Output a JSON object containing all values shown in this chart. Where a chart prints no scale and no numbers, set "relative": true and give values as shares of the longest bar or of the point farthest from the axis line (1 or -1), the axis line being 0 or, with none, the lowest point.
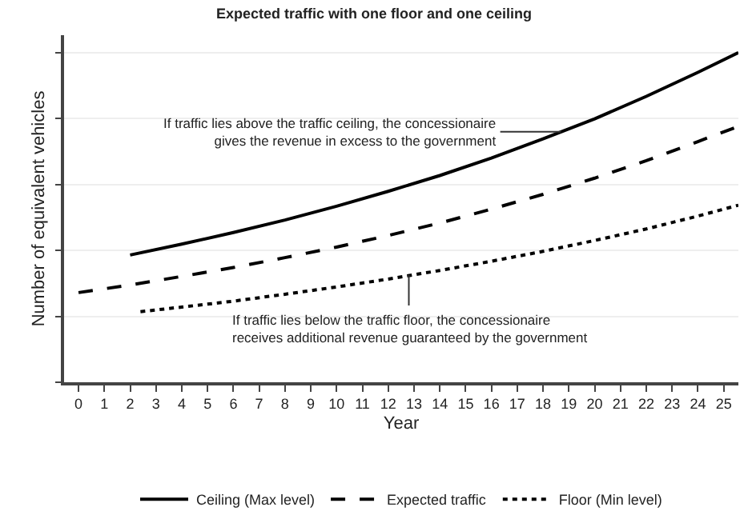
{
  "chart_data": {
    "type": "line",
    "title": "Expected traffic with one floor and one ceiling",
    "xlabel": "Year",
    "ylabel": "Number of equivalent vehicles",
    "relative": true,
    "xlim": [
      -0.56,
      25.57
    ],
    "xticks": [
      0,
      1,
      2,
      3,
      4,
      5,
      6,
      7,
      8,
      9,
      10,
      11,
      12,
      13,
      14,
      15,
      16,
      17,
      18,
      19,
      20,
      21,
      22,
      23,
      24,
      25
    ],
    "grid": "y",
    "legend": "bottom",
    "series": [
      {
        "name": "Ceiling (Max level)",
        "color": "#000000",
        "line_style": "solid",
        "x": [
          2,
          4,
          6,
          8,
          10,
          12,
          14,
          16,
          18,
          20,
          22,
          24,
          25.57
        ],
        "values": [
          0.386,
          0.419,
          0.454,
          0.492,
          0.534,
          0.579,
          0.627,
          0.68,
          0.738,
          0.799,
          0.867,
          0.94,
          1.0
        ]
      },
      {
        "name": "Expected traffic",
        "color": "#000000",
        "line_style": "dashed",
        "x": [
          0,
          2,
          4,
          6,
          8,
          10,
          12,
          14,
          16,
          18,
          20,
          22,
          24,
          25.57
        ],
        "values": [
          0.272,
          0.295,
          0.321,
          0.348,
          0.378,
          0.41,
          0.445,
          0.483,
          0.525,
          0.57,
          0.619,
          0.672,
          0.73,
          0.776
        ]
      },
      {
        "name": "Floor (Min level)",
        "color": "#000000",
        "line_style": "dotted",
        "x": [
          2.4,
          4,
          6,
          8,
          10,
          12,
          14,
          16,
          18,
          20,
          22,
          24,
          25.57
        ],
        "values": [
          0.214,
          0.228,
          0.246,
          0.267,
          0.289,
          0.313,
          0.339,
          0.367,
          0.397,
          0.43,
          0.465,
          0.504,
          0.537
        ]
      }
    ],
    "annotations": [
      {
        "text": "If traffic lies above the traffic ceiling, the concessionaire\ngives the revenue in excess to the government",
        "x": 18.7,
        "y": 0.76
      },
      {
        "text": "If traffic lies below the traffic floor, the concessionaire\nreceives additional revenue guaranteed by the government",
        "x": 12.8,
        "y": 0.325
      }
    ]
  }
}
